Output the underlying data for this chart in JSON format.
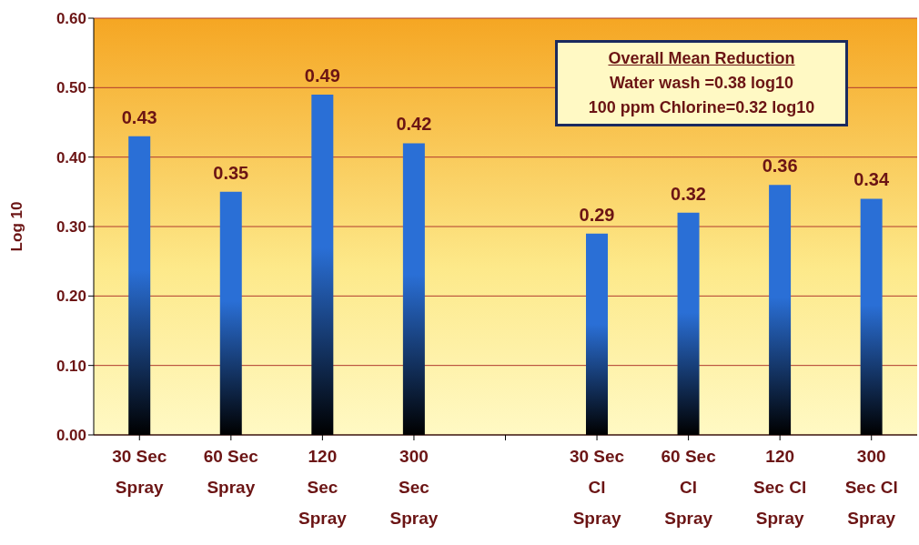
{
  "chart_data": {
    "type": "bar",
    "ylabel": "Log 10",
    "categories": [
      "30 Sec Spray",
      "60 Sec Spray",
      "120 Sec Spray",
      "300 Sec Spray",
      null,
      "30 Sec Cl Spray",
      "60 Sec Cl Spray",
      "120 Sec Cl Spray",
      "300 Sec Cl Spray"
    ],
    "values": [
      0.43,
      0.35,
      0.49,
      0.42,
      null,
      0.29,
      0.32,
      0.36,
      0.34
    ],
    "color": "#2a6fd6",
    "ylim": [
      0,
      0.6
    ],
    "yticks": [
      {
        "value": 0,
        "label": "0.00"
      },
      {
        "value": 0.1,
        "label": "0.10"
      },
      {
        "value": 0.2,
        "label": "0.20"
      },
      {
        "value": 0.3,
        "label": "0.30"
      },
      {
        "value": 0.4,
        "label": "0.40"
      },
      {
        "value": 0.5,
        "label": "0.50"
      },
      {
        "value": 0.6,
        "label": "0.60"
      }
    ],
    "grid": "y",
    "data_labels": true,
    "legend": false,
    "annotations": [
      "Overall Mean Reduction",
      "Water wash =0.38 log10",
      "100 ppm Chlorine=0.32 log10"
    ]
  }
}
